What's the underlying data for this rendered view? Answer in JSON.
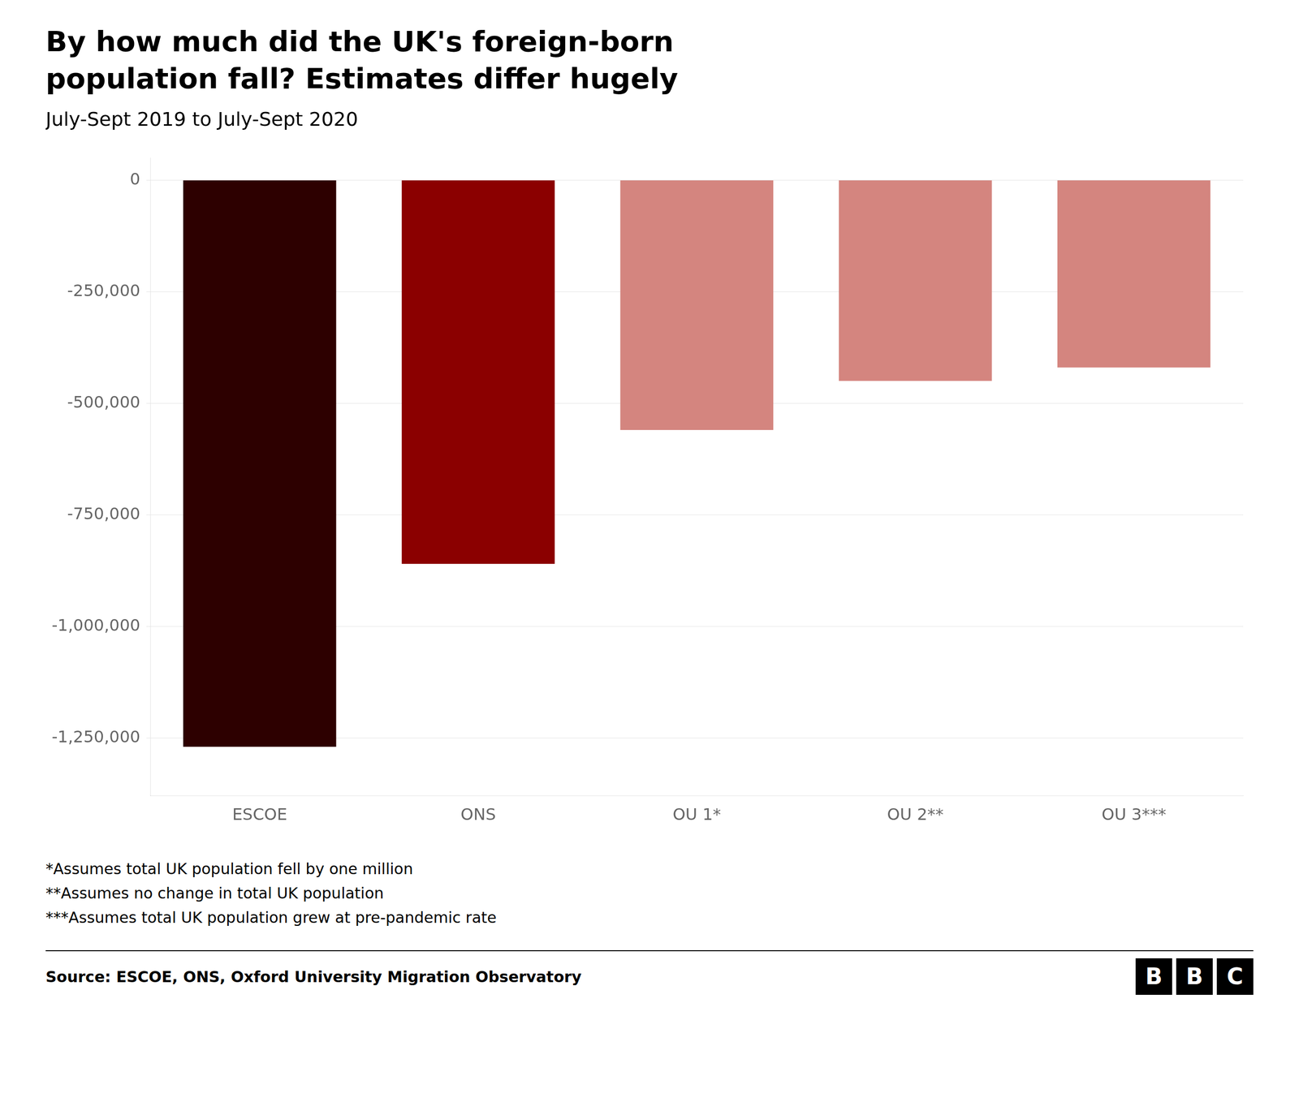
{
  "chart_data": {
    "type": "bar",
    "title": [
      "By how much did the UK's foreign-born",
      "population fall? Estimates differ hugely"
    ],
    "subtitle": "July-Sept 2019 to July-Sept 2020",
    "categories": [
      "ESCOE",
      "ONS",
      "OU 1*",
      "OU 2**",
      "OU 3***"
    ],
    "values": [
      -1270000,
      -860000,
      -560000,
      -450000,
      -420000
    ],
    "colors": [
      "#2d0000",
      "#8b0000",
      "#d4857f",
      "#d4857f",
      "#d4857f"
    ],
    "ylim": [
      -1380000,
      50000
    ],
    "yticks": [
      0,
      {
        "value": -250000,
        "label": "-250,000"
      },
      {
        "value": -500000,
        "label": "-500,000"
      },
      {
        "value": -750000,
        "label": "-750,000"
      },
      {
        "value": -1000000,
        "label": "-1,000,000"
      },
      {
        "value": -1250000,
        "label": "-1,250,000"
      }
    ],
    "grid": true,
    "annotations": [
      "*Assumes total UK population fell by one million",
      "**Assumes no change in total UK population",
      "***Assumes total UK population grew at pre-pandemic rate",
      "Source: ESCOE, ONS, Oxford University Migration Observatory",
      "BBC"
    ]
  }
}
